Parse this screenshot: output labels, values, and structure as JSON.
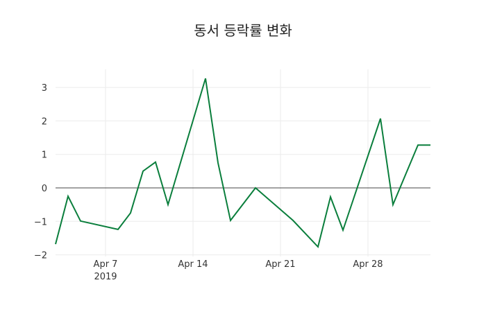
{
  "chart_data": {
    "type": "line",
    "title": "동서 등락률 변화",
    "xlabel": "",
    "ylabel": "",
    "ylim": [
      -2.1,
      3.55
    ],
    "yticks": [
      3,
      2,
      1,
      0,
      -1,
      -2
    ],
    "ytick_labels": [
      "3",
      "2",
      "1",
      "0",
      "−1",
      "−2"
    ],
    "xticks": [
      {
        "date": "2019-04-07",
        "label": "Apr 7",
        "sublabel": "2019"
      },
      {
        "date": "2019-04-14",
        "label": "Apr 14",
        "sublabel": ""
      },
      {
        "date": "2019-04-21",
        "label": "Apr 21",
        "sublabel": ""
      },
      {
        "date": "2019-04-28",
        "label": "Apr 28",
        "sublabel": ""
      }
    ],
    "grid": true,
    "zeroline": true,
    "legend": null,
    "series": [
      {
        "name": "등락률",
        "color": "#0a7e3c",
        "x": [
          "2019-04-03",
          "2019-04-04",
          "2019-04-05",
          "2019-04-08",
          "2019-04-09",
          "2019-04-10",
          "2019-04-11",
          "2019-04-12",
          "2019-04-15",
          "2019-04-16",
          "2019-04-17",
          "2019-04-19",
          "2019-04-22",
          "2019-04-24",
          "2019-04-25",
          "2019-04-26",
          "2019-04-29",
          "2019-04-30",
          "2019-05-02",
          "2019-05-03"
        ],
        "values": [
          -1.68,
          -0.25,
          -0.99,
          -1.24,
          -0.75,
          0.5,
          0.77,
          -0.5,
          3.27,
          0.75,
          -0.97,
          0.0,
          -0.97,
          -1.76,
          -0.27,
          -1.26,
          2.07,
          -0.5,
          1.28,
          1.28
        ]
      }
    ]
  }
}
